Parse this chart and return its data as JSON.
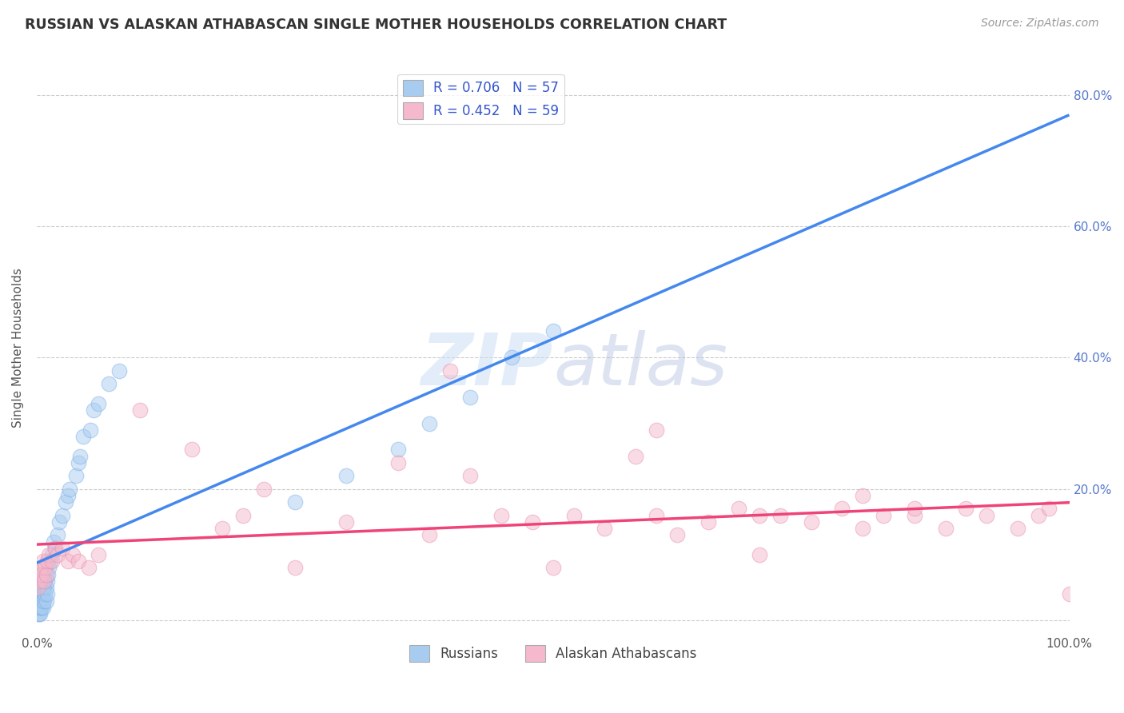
{
  "title": "RUSSIAN VS ALASKAN ATHABASCAN SINGLE MOTHER HOUSEHOLDS CORRELATION CHART",
  "source": "Source: ZipAtlas.com",
  "ylabel": "Single Mother Households",
  "background_color": "#ffffff",
  "grid_color": "#cccccc",
  "russians_color": "#a8ccf0",
  "russians_edge_color": "#7eb0e8",
  "athabascan_color": "#f5b8cc",
  "athabascan_edge_color": "#e890aa",
  "russians_line_color": "#4488ee",
  "athabascan_line_color": "#ee4477",
  "dash_color": "#bbbbbb",
  "legend_r1": "R = 0.706",
  "legend_n1": "N = 57",
  "legend_r2": "R = 0.452",
  "legend_n2": "N = 59",
  "russians_x": [
    0.001,
    0.001,
    0.001,
    0.002,
    0.002,
    0.002,
    0.002,
    0.003,
    0.003,
    0.003,
    0.003,
    0.004,
    0.004,
    0.004,
    0.005,
    0.005,
    0.005,
    0.006,
    0.006,
    0.006,
    0.007,
    0.007,
    0.007,
    0.008,
    0.008,
    0.009,
    0.009,
    0.01,
    0.01,
    0.011,
    0.012,
    0.013,
    0.015,
    0.016,
    0.018,
    0.02,
    0.022,
    0.025,
    0.028,
    0.03,
    0.032,
    0.038,
    0.04,
    0.042,
    0.045,
    0.052,
    0.055,
    0.06,
    0.07,
    0.08,
    0.25,
    0.3,
    0.35,
    0.38,
    0.42,
    0.46,
    0.5
  ],
  "russians_y": [
    0.02,
    0.03,
    0.01,
    0.04,
    0.02,
    0.01,
    0.03,
    0.05,
    0.02,
    0.03,
    0.01,
    0.03,
    0.04,
    0.02,
    0.04,
    0.02,
    0.06,
    0.03,
    0.05,
    0.02,
    0.05,
    0.03,
    0.07,
    0.04,
    0.06,
    0.05,
    0.03,
    0.06,
    0.04,
    0.07,
    0.08,
    0.09,
    0.1,
    0.12,
    0.11,
    0.13,
    0.15,
    0.16,
    0.18,
    0.19,
    0.2,
    0.22,
    0.24,
    0.25,
    0.28,
    0.29,
    0.32,
    0.33,
    0.36,
    0.38,
    0.18,
    0.22,
    0.26,
    0.3,
    0.34,
    0.4,
    0.44
  ],
  "athabascan_x": [
    0.001,
    0.002,
    0.003,
    0.004,
    0.005,
    0.006,
    0.007,
    0.008,
    0.009,
    0.01,
    0.012,
    0.015,
    0.018,
    0.02,
    0.025,
    0.03,
    0.035,
    0.04,
    0.05,
    0.06,
    0.1,
    0.15,
    0.18,
    0.2,
    0.22,
    0.25,
    0.3,
    0.35,
    0.38,
    0.4,
    0.42,
    0.45,
    0.48,
    0.5,
    0.52,
    0.55,
    0.58,
    0.6,
    0.62,
    0.65,
    0.68,
    0.7,
    0.72,
    0.75,
    0.78,
    0.8,
    0.82,
    0.85,
    0.88,
    0.9,
    0.92,
    0.95,
    0.97,
    0.98,
    1.0,
    0.7,
    0.8,
    0.85,
    0.6
  ],
  "athabascan_y": [
    0.05,
    0.07,
    0.06,
    0.08,
    0.07,
    0.09,
    0.06,
    0.08,
    0.07,
    0.09,
    0.1,
    0.09,
    0.11,
    0.1,
    0.11,
    0.09,
    0.1,
    0.09,
    0.08,
    0.1,
    0.32,
    0.26,
    0.14,
    0.16,
    0.2,
    0.08,
    0.15,
    0.24,
    0.13,
    0.38,
    0.22,
    0.16,
    0.15,
    0.08,
    0.16,
    0.14,
    0.25,
    0.16,
    0.13,
    0.15,
    0.17,
    0.1,
    0.16,
    0.15,
    0.17,
    0.14,
    0.16,
    0.16,
    0.14,
    0.17,
    0.16,
    0.14,
    0.16,
    0.17,
    0.04,
    0.16,
    0.19,
    0.17,
    0.29
  ],
  "xlim": [
    0.0,
    1.0
  ],
  "ylim": [
    -0.02,
    0.85
  ],
  "ytick_positions": [
    0.0,
    0.2,
    0.4,
    0.6,
    0.8
  ],
  "ytick_labels": [
    "",
    "20.0%",
    "40.0%",
    "60.0%",
    "80.0%"
  ],
  "xtick_positions": [
    0.0,
    0.2,
    0.4,
    0.6,
    0.8,
    1.0
  ],
  "xtick_labels": [
    "0.0%",
    "",
    "",
    "",
    "",
    "100.0%"
  ]
}
